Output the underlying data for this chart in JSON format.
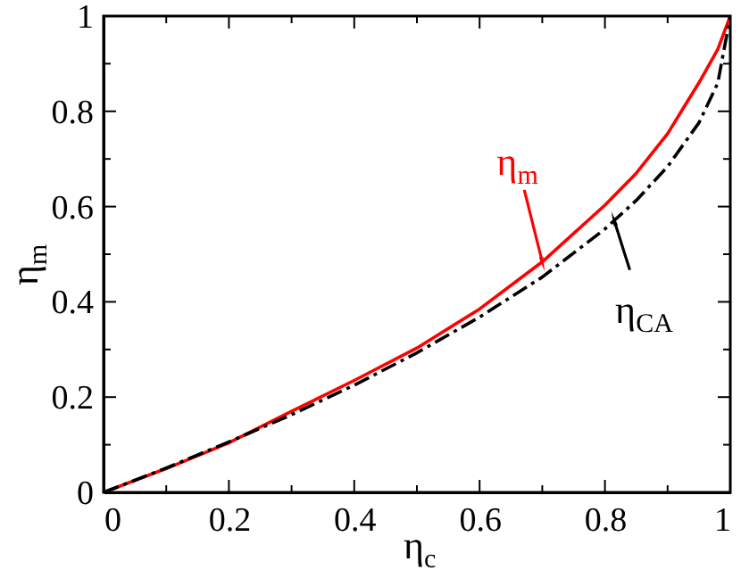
{
  "chart_data": {
    "type": "line",
    "xlabel": "η$_{c}$",
    "ylabel": "η$_{m}$",
    "x": [
      0,
      0.1,
      0.2,
      0.3,
      0.4,
      0.5,
      0.6,
      0.7,
      0.8,
      0.85,
      0.9,
      0.95,
      0.98,
      1
    ],
    "series": [
      {
        "color": "#ff0000",
        "line_style": "solid",
        "values": [
          0,
          0.05,
          0.104,
          0.17,
          0.235,
          0.303,
          0.385,
          0.484,
          0.603,
          0.67,
          0.753,
          0.86,
          0.93,
          1
        ]
      },
      {
        "color": "#000000",
        "line_style": "dashed",
        "values": [
          0,
          0.051,
          0.106,
          0.163,
          0.225,
          0.293,
          0.368,
          0.452,
          0.553,
          0.613,
          0.684,
          0.776,
          0.859,
          1
        ]
      }
    ],
    "annotations": [
      {
        "text": "η$_{m}$",
        "x": 0.7,
        "y": 0.484
      },
      {
        "text": "η$_{CA}$",
        "x": 0.815,
        "y": 0.57
      }
    ],
    "xlim": [
      0,
      1
    ],
    "ylim": [
      0,
      1
    ],
    "xticks": [
      0,
      {
        "value": 0.1,
        "label": null
      },
      0.2,
      {
        "value": 0.3,
        "label": null
      },
      0.4,
      {
        "value": 0.5,
        "label": null
      },
      0.6,
      {
        "value": 0.7,
        "label": null
      },
      0.8,
      {
        "value": 0.9,
        "label": null
      },
      1
    ],
    "yticks": [
      0,
      {
        "value": 0.1,
        "label": null
      },
      0.2,
      {
        "value": 0.3,
        "label": null
      },
      0.4,
      {
        "value": 0.5,
        "label": null
      },
      0.6,
      {
        "value": 0.7,
        "label": null
      },
      0.8,
      {
        "value": 0.9,
        "label": null
      },
      1
    ],
    "marker": "none"
  }
}
